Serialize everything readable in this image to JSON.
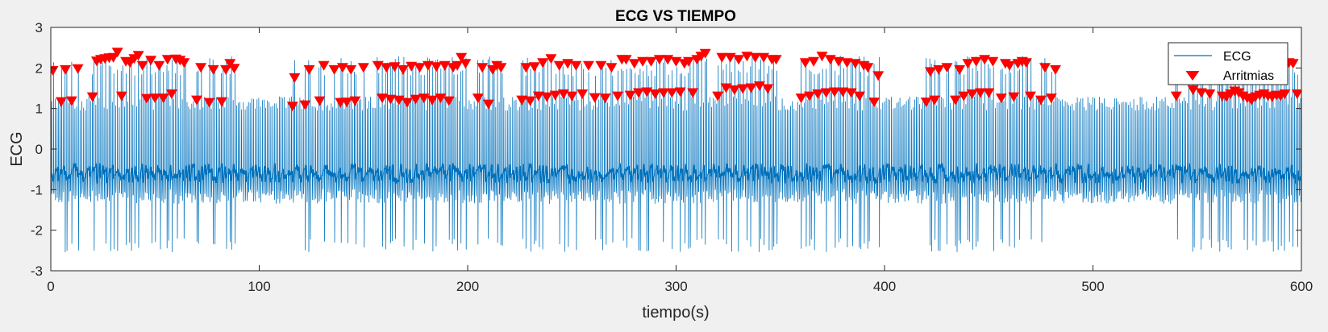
{
  "chart_data": {
    "type": "line",
    "title": "ECG VS TIEMPO",
    "xlabel": "tiempo(s)",
    "ylabel": "ECG",
    "xlim": [
      0,
      600
    ],
    "ylim": [
      -3,
      3
    ],
    "xticks": [
      0,
      100,
      200,
      300,
      400,
      500,
      600
    ],
    "yticks": [
      -3,
      -2,
      -1,
      0,
      1,
      2,
      3
    ],
    "grid": false,
    "legend_position": "top-right",
    "colors": {
      "ecg": "#0072BD",
      "markers": "#FF0000",
      "axes_bg": "#FFFFFF",
      "figure_bg": "#F0F0F0"
    },
    "series": [
      {
        "name": "ECG",
        "style": "line"
      },
      {
        "name": "Arritmias",
        "style": "downward-triangle-markers",
        "points": [
          [
            1,
            1.93
          ],
          [
            5,
            1.16
          ],
          [
            7,
            1.95
          ],
          [
            10,
            1.18
          ],
          [
            13,
            1.97
          ],
          [
            20,
            1.28
          ],
          [
            22,
            2.16
          ],
          [
            24,
            2.2
          ],
          [
            26,
            2.22
          ],
          [
            28,
            2.24
          ],
          [
            30,
            2.25
          ],
          [
            32,
            2.38
          ],
          [
            34,
            1.3
          ],
          [
            36,
            2.15
          ],
          [
            38,
            2.12
          ],
          [
            40,
            2.22
          ],
          [
            42,
            2.3
          ],
          [
            44,
            2.05
          ],
          [
            46,
            1.24
          ],
          [
            48,
            2.18
          ],
          [
            50,
            1.25
          ],
          [
            52,
            2.05
          ],
          [
            54,
            1.25
          ],
          [
            56,
            2.2
          ],
          [
            58,
            1.35
          ],
          [
            60,
            2.21
          ],
          [
            62,
            2.18
          ],
          [
            64,
            2.12
          ],
          [
            70,
            1.2
          ],
          [
            72,
            2.0
          ],
          [
            76,
            1.14
          ],
          [
            78,
            1.95
          ],
          [
            82,
            1.16
          ],
          [
            84,
            1.95
          ],
          [
            86,
            2.1
          ],
          [
            88,
            1.98
          ],
          [
            116,
            1.05
          ],
          [
            117,
            1.75
          ],
          [
            122,
            1.08
          ],
          [
            124,
            1.95
          ],
          [
            129,
            1.18
          ],
          [
            131,
            2.05
          ],
          [
            136,
            1.95
          ],
          [
            139,
            1.14
          ],
          [
            140,
            2.0
          ],
          [
            142,
            1.15
          ],
          [
            144,
            1.95
          ],
          [
            146,
            1.18
          ],
          [
            150,
            2.0
          ],
          [
            157,
            2.05
          ],
          [
            159,
            1.25
          ],
          [
            161,
            2.0
          ],
          [
            163,
            1.22
          ],
          [
            165,
            2.02
          ],
          [
            167,
            1.2
          ],
          [
            169,
            1.95
          ],
          [
            171,
            1.14
          ],
          [
            173,
            2.03
          ],
          [
            175,
            1.22
          ],
          [
            177,
            2.0
          ],
          [
            179,
            1.25
          ],
          [
            181,
            2.05
          ],
          [
            183,
            1.2
          ],
          [
            185,
            2.02
          ],
          [
            187,
            1.25
          ],
          [
            189,
            2.05
          ],
          [
            191,
            1.18
          ],
          [
            193,
            2.0
          ],
          [
            195,
            2.05
          ],
          [
            197,
            2.25
          ],
          [
            199,
            2.1
          ],
          [
            205,
            1.25
          ],
          [
            207,
            2.0
          ],
          [
            210,
            1.1
          ],
          [
            212,
            1.95
          ],
          [
            214,
            2.05
          ],
          [
            216,
            2.0
          ],
          [
            226,
            1.2
          ],
          [
            228,
            2.0
          ],
          [
            230,
            1.18
          ],
          [
            232,
            2.02
          ],
          [
            234,
            1.3
          ],
          [
            236,
            2.12
          ],
          [
            238,
            1.28
          ],
          [
            240,
            2.22
          ],
          [
            242,
            1.32
          ],
          [
            244,
            2.05
          ],
          [
            246,
            1.35
          ],
          [
            248,
            2.1
          ],
          [
            250,
            1.3
          ],
          [
            252,
            2.05
          ],
          [
            255,
            1.35
          ],
          [
            258,
            2.05
          ],
          [
            261,
            1.26
          ],
          [
            264,
            2.05
          ],
          [
            266,
            1.25
          ],
          [
            269,
            2.0
          ],
          [
            272,
            1.3
          ],
          [
            274,
            2.2
          ],
          [
            276,
            2.2
          ],
          [
            278,
            1.32
          ],
          [
            280,
            2.1
          ],
          [
            282,
            1.38
          ],
          [
            284,
            2.15
          ],
          [
            286,
            1.4
          ],
          [
            288,
            2.15
          ],
          [
            290,
            1.35
          ],
          [
            292,
            2.2
          ],
          [
            294,
            1.38
          ],
          [
            296,
            2.2
          ],
          [
            298,
            1.38
          ],
          [
            300,
            2.15
          ],
          [
            302,
            1.4
          ],
          [
            304,
            2.1
          ],
          [
            306,
            2.15
          ],
          [
            308,
            1.38
          ],
          [
            310,
            2.2
          ],
          [
            312,
            2.28
          ],
          [
            314,
            2.35
          ],
          [
            320,
            1.3
          ],
          [
            322,
            2.25
          ],
          [
            324,
            1.5
          ],
          [
            326,
            2.25
          ],
          [
            328,
            1.45
          ],
          [
            330,
            2.2
          ],
          [
            332,
            1.48
          ],
          [
            334,
            2.28
          ],
          [
            336,
            1.5
          ],
          [
            338,
            2.25
          ],
          [
            340,
            1.55
          ],
          [
            342,
            2.25
          ],
          [
            344,
            1.48
          ],
          [
            346,
            2.2
          ],
          [
            348,
            2.2
          ],
          [
            360,
            1.25
          ],
          [
            362,
            2.12
          ],
          [
            364,
            1.3
          ],
          [
            366,
            2.15
          ],
          [
            368,
            1.35
          ],
          [
            370,
            2.28
          ],
          [
            372,
            1.38
          ],
          [
            374,
            2.2
          ],
          [
            376,
            1.4
          ],
          [
            378,
            2.15
          ],
          [
            380,
            1.4
          ],
          [
            382,
            2.12
          ],
          [
            384,
            1.38
          ],
          [
            386,
            2.1
          ],
          [
            388,
            1.3
          ],
          [
            390,
            2.05
          ],
          [
            392,
            2.0
          ],
          [
            395,
            1.15
          ],
          [
            397,
            1.8
          ],
          [
            420,
            1.15
          ],
          [
            422,
            1.9
          ],
          [
            424,
            1.2
          ],
          [
            426,
            1.95
          ],
          [
            430,
            2.0
          ],
          [
            434,
            1.2
          ],
          [
            436,
            1.95
          ],
          [
            438,
            1.3
          ],
          [
            440,
            2.1
          ],
          [
            442,
            1.35
          ],
          [
            444,
            2.15
          ],
          [
            446,
            1.38
          ],
          [
            448,
            2.2
          ],
          [
            450,
            1.38
          ],
          [
            452,
            2.15
          ],
          [
            456,
            1.25
          ],
          [
            458,
            2.1
          ],
          [
            460,
            2.05
          ],
          [
            462,
            1.28
          ],
          [
            464,
            2.1
          ],
          [
            466,
            2.15
          ],
          [
            468,
            2.12
          ],
          [
            470,
            1.3
          ],
          [
            475,
            1.2
          ],
          [
            477,
            2.0
          ],
          [
            480,
            1.25
          ],
          [
            482,
            1.95
          ],
          [
            540,
            1.3
          ],
          [
            546,
            2.2
          ],
          [
            548,
            1.45
          ],
          [
            550,
            2.15
          ],
          [
            552,
            1.38
          ],
          [
            556,
            1.35
          ],
          [
            560,
            2.05
          ],
          [
            562,
            1.3
          ],
          [
            564,
            1.28
          ],
          [
            566,
            1.35
          ],
          [
            568,
            1.42
          ],
          [
            570,
            1.38
          ],
          [
            572,
            1.3
          ],
          [
            574,
            1.25
          ],
          [
            576,
            1.2
          ],
          [
            578,
            1.28
          ],
          [
            580,
            1.32
          ],
          [
            582,
            1.35
          ],
          [
            584,
            1.3
          ],
          [
            586,
            1.28
          ],
          [
            588,
            1.32
          ],
          [
            590,
            1.3
          ],
          [
            592,
            1.35
          ],
          [
            594,
            2.12
          ],
          [
            596,
            2.1
          ],
          [
            598,
            1.35
          ]
        ]
      }
    ]
  }
}
